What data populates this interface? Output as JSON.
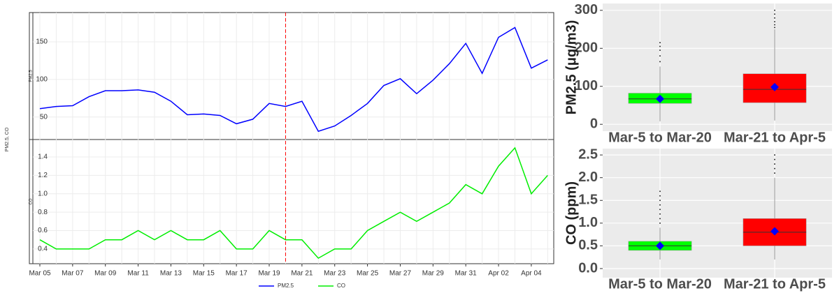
{
  "chart_data": [
    {
      "type": "line",
      "ylabel": "PM2.5, CO",
      "x": [
        "Mar 05",
        null,
        "Mar 07",
        null,
        "Mar 09",
        null,
        "Mar 11",
        null,
        "Mar 13",
        null,
        "Mar 15",
        null,
        "Mar 17",
        null,
        "Mar 19",
        null,
        "Mar 21",
        null,
        "Mar 23",
        null,
        "Mar 25",
        null,
        "Mar 27",
        null,
        "Mar 29",
        null,
        "Mar 31",
        null,
        "Apr 02",
        null,
        "Apr 04",
        null
      ],
      "series": [
        {
          "name": "PM2.5",
          "color": "#0000ff",
          "values": [
            61,
            64,
            65,
            77,
            85,
            85,
            86,
            83,
            71,
            53,
            54,
            52,
            41,
            47,
            68,
            64,
            71,
            31,
            38,
            52,
            68,
            92,
            101,
            81,
            99,
            121,
            148,
            108,
            156,
            169,
            115,
            126
          ],
          "ylim": [
            20,
            189
          ],
          "yticks": [
            50,
            100,
            150
          ]
        },
        {
          "name": "CO",
          "color": "#00ee00",
          "values": [
            0.5,
            0.4,
            0.4,
            0.4,
            0.5,
            0.5,
            0.6,
            0.5,
            0.6,
            0.5,
            0.5,
            0.6,
            0.4,
            0.4,
            0.6,
            0.5,
            0.5,
            0.3,
            0.4,
            0.4,
            0.6,
            0.7,
            0.8,
            0.7,
            0.8,
            0.9,
            1.1,
            1.0,
            1.3,
            1.5,
            1.0,
            1.2
          ],
          "ylim": [
            0.24,
            1.59
          ],
          "yticks": [
            0.4,
            0.6,
            0.8,
            {
              "value": 1,
              "label": "1.0"
            },
            1.2,
            1.4
          ]
        }
      ],
      "vline_index": 15,
      "vline_color": "#ff0000",
      "grid": true
    },
    {
      "type": "box",
      "ylabel": "PM2.5 (μg/m3)",
      "categories": [
        "Mar-5 to Mar-20",
        "Mar-21 to Apr-5"
      ],
      "colors": [
        "#00ff00",
        "#ff0000"
      ],
      "mean_color": "#0000ff",
      "boxes": [
        {
          "low": 8,
          "q1": 55,
          "median": 67,
          "q3": 82,
          "high": 152,
          "mean": 67,
          "outliers": [
            165,
            180,
            195,
            205,
            215
          ]
        },
        {
          "low": 10,
          "q1": 57,
          "median": 92,
          "q3": 133,
          "high": 250,
          "mean": 98,
          "outliers": [
            255,
            262,
            270,
            280,
            290,
            300
          ]
        }
      ],
      "ylim": [
        -18,
        318
      ],
      "yticks": [
        0,
        100,
        200,
        300
      ]
    },
    {
      "type": "box",
      "ylabel": "CO (ppm)",
      "categories": [
        "Mar-5 to Mar-20",
        "Mar-21 to Apr-5"
      ],
      "colors": [
        "#00ff00",
        "#ff0000"
      ],
      "mean_color": "#0000ff",
      "boxes": [
        {
          "low": 0.2,
          "q1": 0.4,
          "median": 0.5,
          "q3": 0.6,
          "high": 0.9,
          "mean": 0.5,
          "outliers": [
            1.0,
            1.1,
            1.2,
            1.3,
            1.4,
            1.5,
            1.6,
            1.7
          ]
        },
        {
          "low": 0.2,
          "q1": 0.5,
          "median": 0.8,
          "q3": 1.1,
          "high": 2.0,
          "mean": 0.82,
          "outliers": [
            2.1,
            2.2,
            2.3,
            2.4,
            2.5
          ]
        }
      ],
      "ylim": [
        -0.2,
        2.64
      ],
      "yticks": [
        {
          "value": 0,
          "label": "0.0"
        },
        0.5,
        {
          "value": 1,
          "label": "1.0"
        },
        1.5,
        {
          "value": 2,
          "label": "2.0"
        },
        2.5
      ]
    }
  ]
}
